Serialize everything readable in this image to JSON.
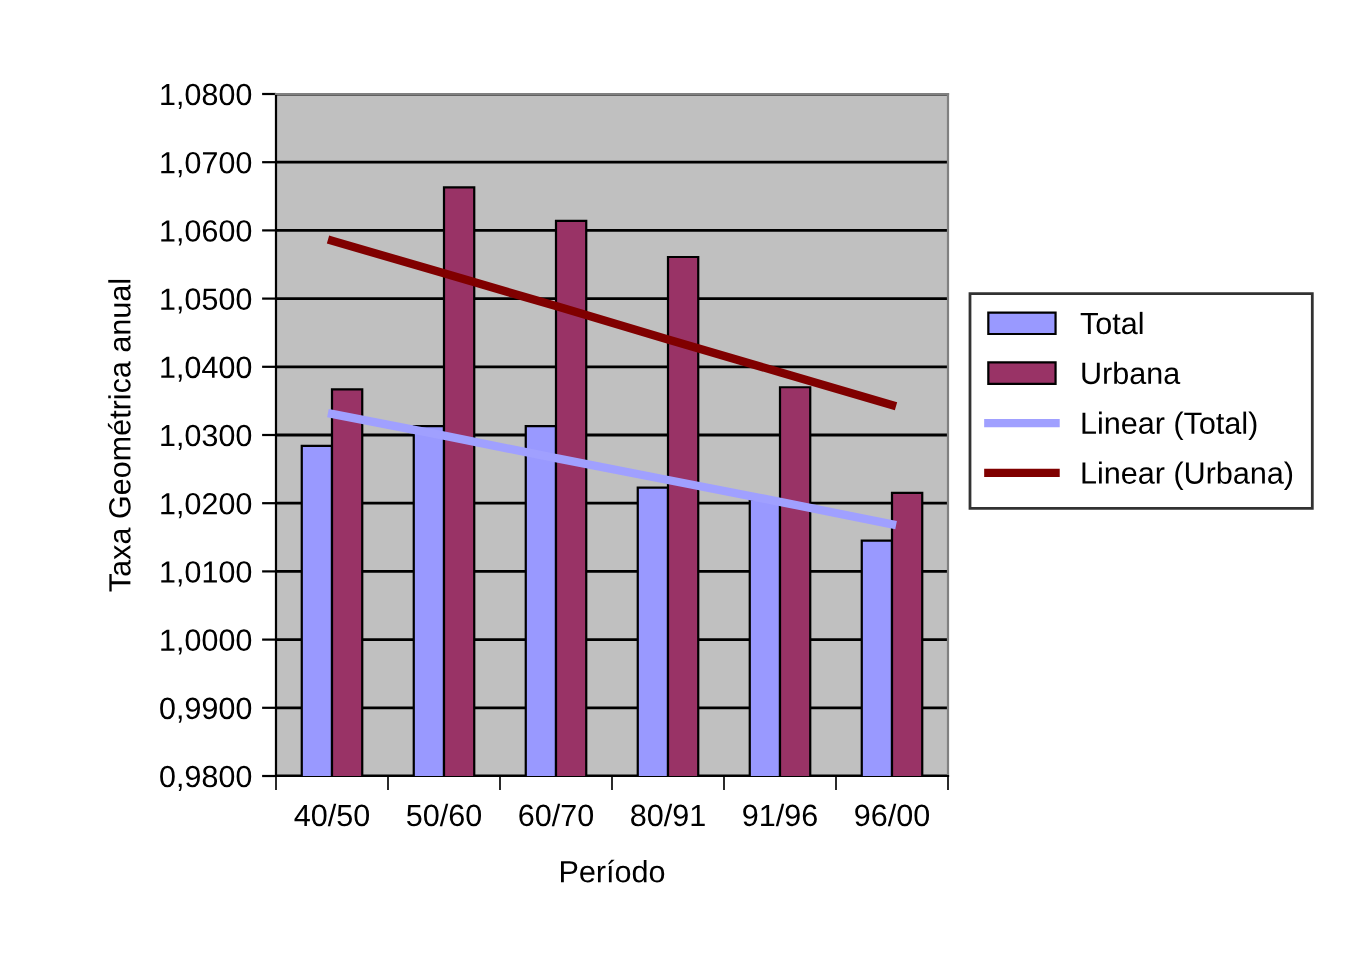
{
  "chart_data": {
    "type": "bar",
    "xlabel": "Período",
    "ylabel": "Taxa Geométrica anual",
    "categories": [
      "40/50",
      "50/60",
      "60/70",
      "80/91",
      "91/96",
      "96/00"
    ],
    "series": [
      {
        "name": "Total",
        "color": "#9999ff",
        "values": [
          1.0284,
          1.0313,
          1.0313,
          1.0223,
          1.0206,
          1.0145
        ]
      },
      {
        "name": "Urbana",
        "color": "#993366",
        "values": [
          1.0367,
          1.0663,
          1.0614,
          1.0561,
          1.037,
          1.0215
        ]
      },
      {
        "name": "Linear (Total)",
        "type": "line",
        "color": "#a0a0ff",
        "values": [
          1.0331,
          1.0299,
          1.0266,
          1.0234,
          1.0202,
          1.0169
        ]
      },
      {
        "name": "Linear (Urbana)",
        "type": "line",
        "color": "#800000",
        "values": [
          1.0585,
          1.0537,
          1.0489,
          1.044,
          1.0392,
          1.0344
        ]
      }
    ],
    "ylim": [
      0.98,
      1.08
    ],
    "yticks": [
      {
        "value": 0.98,
        "label": "0,9800"
      },
      {
        "value": 0.99,
        "label": "0,9900"
      },
      {
        "value": 1.0,
        "label": "1,0000"
      },
      {
        "value": 1.01,
        "label": "1,0100"
      },
      {
        "value": 1.02,
        "label": "1,0200"
      },
      {
        "value": 1.03,
        "label": "1,0300"
      },
      {
        "value": 1.04,
        "label": "1,0400"
      },
      {
        "value": 1.05,
        "label": "1,0500"
      },
      {
        "value": 1.06,
        "label": "1,0600"
      },
      {
        "value": 1.07,
        "label": "1,0700"
      },
      {
        "value": 1.08,
        "label": "1,0800"
      }
    ],
    "grid": "y",
    "legend": "right",
    "marker": "none",
    "line_style": "solid"
  }
}
